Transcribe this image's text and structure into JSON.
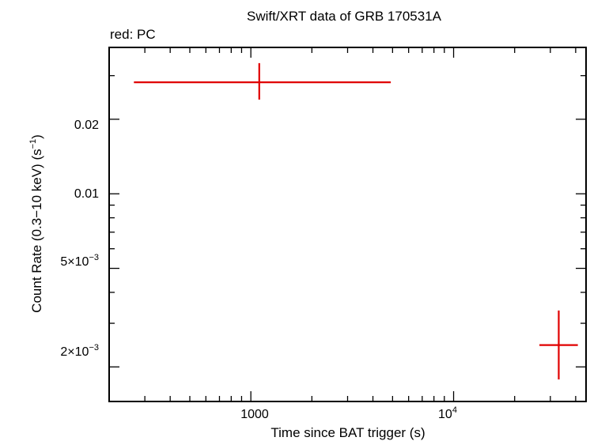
{
  "chart_data": {
    "type": "scatter",
    "title": "Swift/XRT data of GRB 170531A",
    "subtitle": "red: PC",
    "xlabel": "Time since BAT trigger (s)",
    "ylabel": "Count Rate (0.3−10 keV) (s⁻¹)",
    "x_scale": "log",
    "y_scale": "log",
    "xlim": [
      200,
      45000
    ],
    "ylim": [
      0.00145,
      0.039
    ],
    "x_tick_labels": [
      "1000",
      "10⁴"
    ],
    "y_tick_labels": [
      "0.02",
      "0.01",
      "5×10⁻³",
      "2×10⁻³"
    ],
    "series": [
      {
        "name": "PC",
        "color": "#e00000",
        "points": [
          {
            "x": 1100,
            "x_lo": 265,
            "x_hi": 4900,
            "y": 0.0282,
            "y_lo": 0.024,
            "y_hi": 0.0337
          },
          {
            "x": 33000,
            "x_lo": 26500,
            "x_hi": 41000,
            "y": 0.00245,
            "y_lo": 0.00178,
            "y_hi": 0.00338
          }
        ]
      }
    ]
  }
}
